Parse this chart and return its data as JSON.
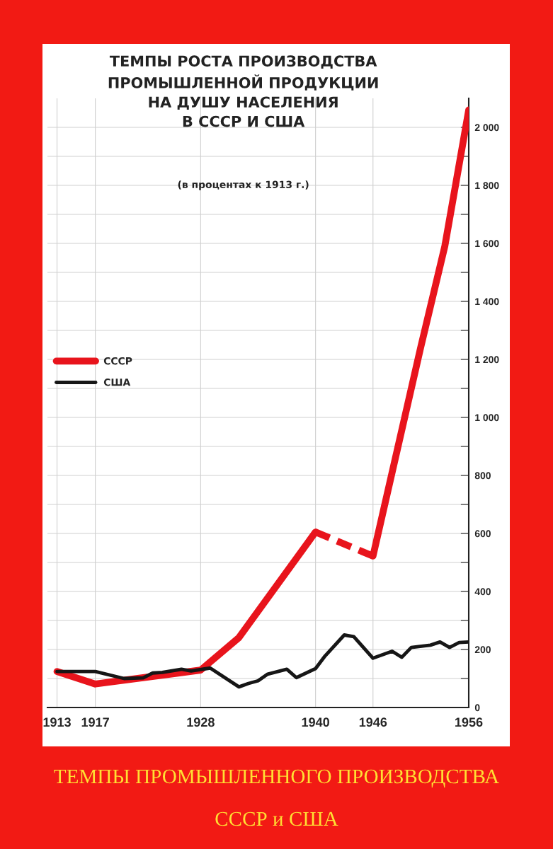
{
  "chart_data": {
    "type": "line",
    "title": "ТЕМПЫ РОСТА ПРОИЗВОДСТВА\nПРОМЫШЛЕННОЙ ПРОДУКЦИИ\nНА ДУШУ НАСЕЛЕНИЯ\nВ СССР И США",
    "subtitle": "(в процентах к 1913 г.)",
    "annotations": [
      "ТЕМПЫ ПРОМЫШЛЕННОГО ПРОИЗВОДСТВА",
      "СССР и США"
    ],
    "series": [
      {
        "name": "СССР",
        "color": "#e8141c",
        "line_style": "solid",
        "x": [
          1913,
          1917,
          1928,
          1932,
          1940
        ],
        "values": [
          124,
          81,
          129,
          241,
          605
        ]
      },
      {
        "color": "#e8141c",
        "line_style": "dashed",
        "x": [
          1940,
          1946
        ],
        "values": [
          605,
          522
        ]
      },
      {
        "color": "#e8141c",
        "line_style": "solid",
        "x": [
          1946,
          1951,
          1953.5,
          1956
        ],
        "values": [
          522,
          1244,
          1590,
          2060
        ]
      },
      {
        "name": "США",
        "color": "#161616",
        "line_style": "solid",
        "x": [
          1913,
          1917,
          1920,
          1922,
          1923,
          1924,
          1926,
          1927,
          1929,
          1932,
          1933,
          1934,
          1935,
          1937,
          1938,
          1940,
          1941,
          1943,
          1944,
          1946,
          1948,
          1949,
          1950,
          1952,
          1953,
          1954,
          1955,
          1956
        ],
        "values": [
          124,
          124,
          100,
          102,
          119,
          121,
          132,
          126,
          136,
          71,
          83,
          92,
          115,
          132,
          103,
          134,
          178,
          250,
          244,
          170,
          194,
          173,
          207,
          215,
          226,
          207,
          224,
          226
        ]
      }
    ],
    "xlim": [
      1912,
      1956
    ],
    "xticks": [
      1913,
      1917,
      1928,
      1940,
      1946,
      1956
    ],
    "ylim": [
      0,
      2100
    ],
    "yticks": [
      0,
      {
        "value": 100,
        "label": null
      },
      200,
      {
        "value": 300,
        "label": null
      },
      400,
      {
        "value": 500,
        "label": null
      },
      600,
      {
        "value": 700,
        "label": null
      },
      800,
      {
        "value": 900,
        "label": null
      },
      {
        "value": 1000,
        "label": "1 000"
      },
      {
        "value": 1100,
        "label": null
      },
      {
        "value": 1200,
        "label": "1 200"
      },
      {
        "value": 1300,
        "label": null
      },
      {
        "value": 1400,
        "label": "1 400"
      },
      {
        "value": 1500,
        "label": null
      },
      {
        "value": 1600,
        "label": "1 600"
      },
      {
        "value": 1700,
        "label": null
      },
      {
        "value": 1800,
        "label": "1 800"
      },
      {
        "value": 1900,
        "label": null
      },
      {
        "value": 2000,
        "label": "2 000"
      }
    ],
    "grid": true,
    "legend": "left",
    "marker": "none"
  }
}
